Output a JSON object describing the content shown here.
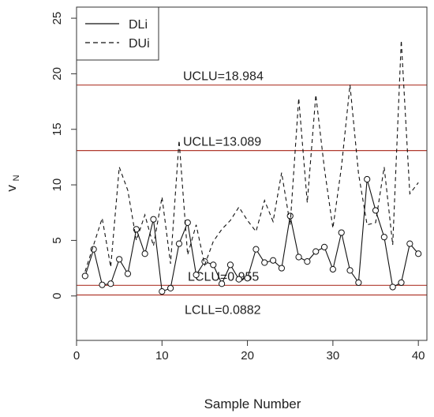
{
  "chart_data": {
    "type": "line",
    "title": "",
    "xlabel": "Sample Number",
    "ylabel_main": "v",
    "ylabel_sub": "N",
    "xlim": [
      0,
      41
    ],
    "ylim": [
      -4,
      26
    ],
    "xticks": [
      "0",
      "10",
      "20",
      "30",
      "40"
    ],
    "yticks": [
      "0",
      "5",
      "10",
      "15",
      "20",
      "25"
    ],
    "x": [
      1,
      2,
      3,
      4,
      5,
      6,
      7,
      8,
      9,
      10,
      11,
      12,
      13,
      14,
      15,
      16,
      17,
      18,
      19,
      20,
      21,
      22,
      23,
      24,
      25,
      26,
      27,
      28,
      29,
      30,
      31,
      32,
      33,
      34,
      35,
      36,
      37,
      38,
      39,
      40
    ],
    "series": [
      {
        "name": "DLi",
        "line": "solid",
        "markers": "open-circle",
        "values": [
          1.8,
          4.2,
          1.0,
          1.1,
          3.3,
          2.0,
          6.0,
          3.8,
          6.9,
          0.4,
          0.7,
          4.7,
          6.6,
          1.9,
          3.1,
          2.8,
          1.1,
          2.8,
          1.5,
          1.6,
          4.2,
          3.0,
          3.2,
          2.5,
          7.2,
          3.5,
          3.1,
          4.0,
          4.4,
          2.4,
          5.7,
          2.3,
          1.2,
          10.5,
          7.7,
          5.3,
          0.8,
          1.2,
          4.7,
          3.8
        ]
      },
      {
        "name": "DUi",
        "line": "dashed",
        "values": [
          2.2,
          4.6,
          7.0,
          2.6,
          11.6,
          9.5,
          5.0,
          7.3,
          4.5,
          8.9,
          2.9,
          14.0,
          3.7,
          6.4,
          2.8,
          4.9,
          6.0,
          6.8,
          8.0,
          6.8,
          5.8,
          8.6,
          6.7,
          11.1,
          6.4,
          17.8,
          8.4,
          18.1,
          11.5,
          6.1,
          11.6,
          19.0,
          11.0,
          6.4,
          6.6,
          11.6,
          4.6,
          23.0,
          9.2,
          10.2
        ]
      }
    ],
    "hlines": [
      {
        "label": "UCLU=18.984",
        "value": 18.984
      },
      {
        "label": "UCLL=13.089",
        "value": 13.089
      },
      {
        "label": "LCLU=0.955",
        "value": 0.955
      },
      {
        "label": "LCLL=0.0882",
        "value": 0.0882
      }
    ],
    "hline_color": "#b03a2e",
    "grid": false,
    "legend_position": "top-left"
  }
}
